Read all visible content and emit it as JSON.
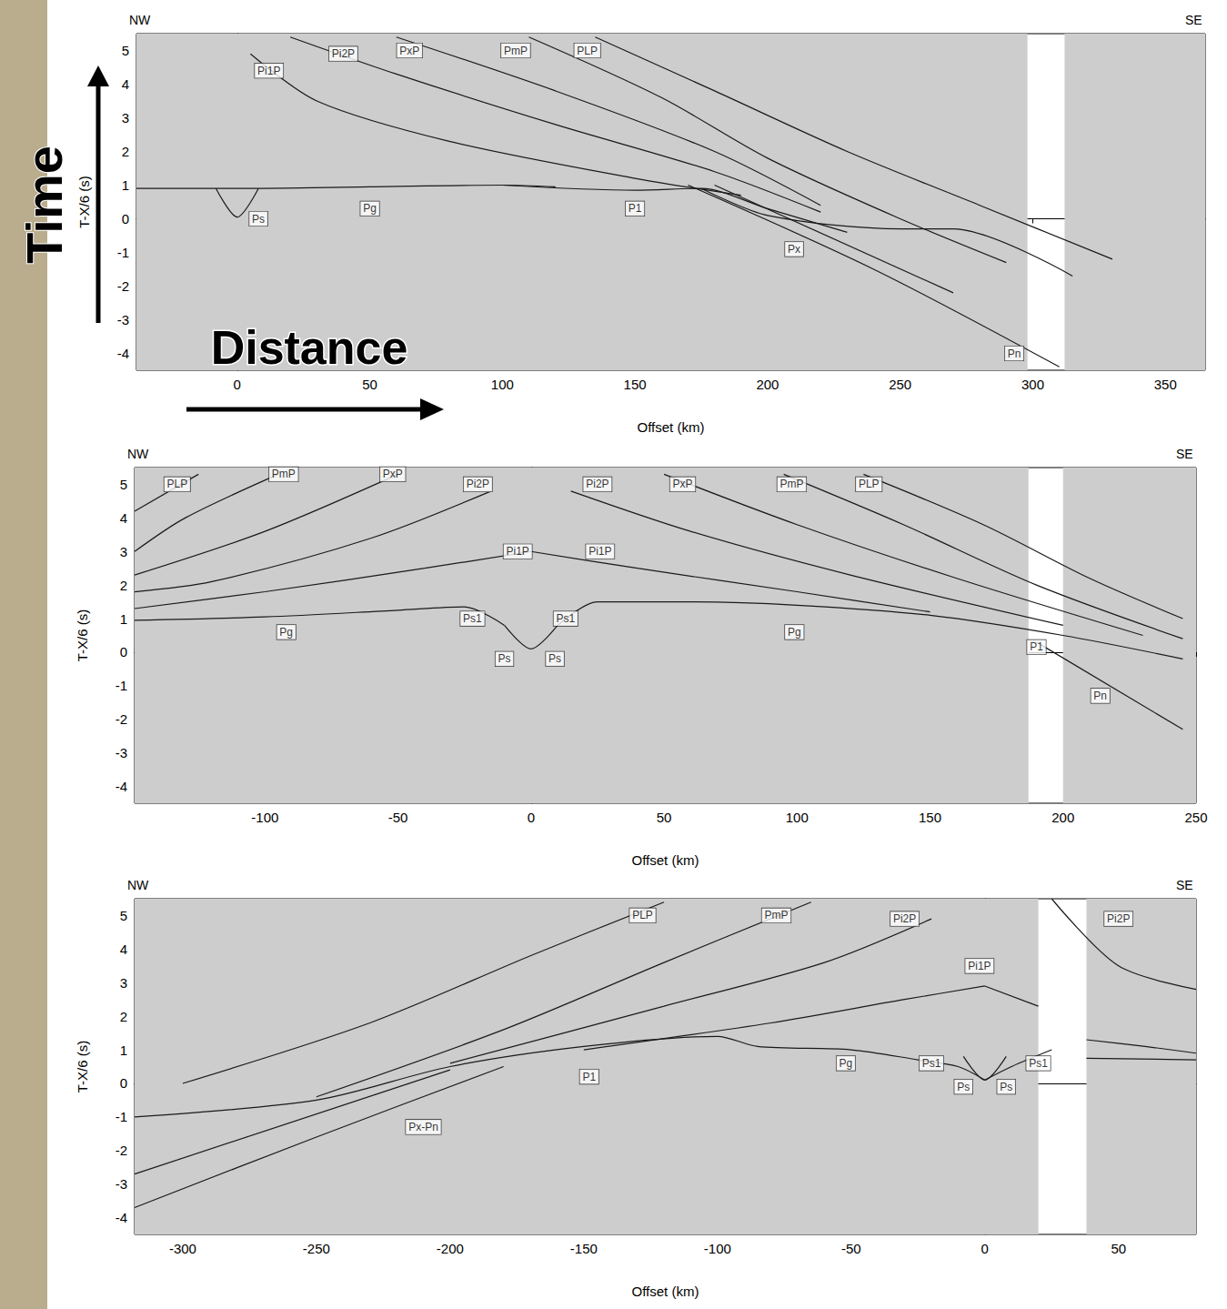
{
  "overlay": {
    "y_label": "Time",
    "x_label": "Distance"
  },
  "chart_data": [
    {
      "type": "line",
      "xlabel": "Offset (km)",
      "ylabel": "T-X/6 (s)",
      "color": "#1a1a1a",
      "corner_labels": {
        "left": "NW",
        "right": "SE"
      },
      "xlim": [
        -38,
        365
      ],
      "xticks": [
        0,
        50,
        100,
        150,
        200,
        250,
        300,
        350
      ],
      "ylim": [
        -4.5,
        5.5
      ],
      "yticks": [
        -4,
        -3,
        -2,
        -1,
        0,
        1,
        2,
        3,
        4,
        5
      ],
      "data_gaps": [
        [
          298,
          312
        ]
      ],
      "series": [
        {
          "x": [
            -8,
            0,
            8
          ],
          "values": [
            0.9,
            0.05,
            0.9
          ]
        },
        {
          "x": [
            -38,
            0,
            50,
            100,
            120
          ],
          "values": [
            0.9,
            0.9,
            0.95,
            1.0,
            0.95
          ]
        },
        {
          "x": [
            100,
            150,
            175,
            200,
            230
          ],
          "values": [
            1.0,
            0.85,
            0.9,
            0.3,
            -0.4
          ]
        },
        {
          "x": [
            175,
            200,
            250,
            270,
            315
          ],
          "values": [
            0.9,
            0.1,
            -0.3,
            -0.3,
            -1.7
          ]
        },
        {
          "x": [
            170,
            240,
            310
          ],
          "values": [
            1.0,
            -1.5,
            -4.4
          ]
        },
        {
          "x": [
            180,
            270
          ],
          "values": [
            1.0,
            -2.2
          ]
        },
        {
          "x": [
            5,
            30,
            80,
            150,
            190
          ],
          "values": [
            4.9,
            3.5,
            2.3,
            1.2,
            0.7
          ]
        },
        {
          "x": [
            20,
            60,
            120,
            180,
            220
          ],
          "values": [
            5.4,
            4.3,
            2.8,
            1.4,
            0.2
          ]
        },
        {
          "x": [
            60,
            120,
            180,
            220
          ],
          "values": [
            5.4,
            3.8,
            2.0,
            0.4
          ]
        },
        {
          "x": [
            110,
            160,
            200,
            250,
            290
          ],
          "values": [
            5.4,
            3.6,
            1.8,
            0.0,
            -1.3
          ]
        },
        {
          "x": [
            135,
            180,
            230,
            280,
            330
          ],
          "values": [
            5.4,
            3.8,
            2.0,
            0.4,
            -1.2
          ]
        }
      ],
      "labels": [
        {
          "text": "Pi1P",
          "x": 12,
          "y": 4.4
        },
        {
          "text": "Pi2P",
          "x": 40,
          "y": 4.9
        },
        {
          "text": "PxP",
          "x": 65,
          "y": 5.0
        },
        {
          "text": "PmP",
          "x": 105,
          "y": 5.0
        },
        {
          "text": "PLP",
          "x": 132,
          "y": 5.0
        },
        {
          "text": "Ps",
          "x": 8,
          "y": 0.0
        },
        {
          "text": "Pg",
          "x": 50,
          "y": 0.3
        },
        {
          "text": "P1",
          "x": 150,
          "y": 0.3
        },
        {
          "text": "Px",
          "x": 210,
          "y": -0.9
        },
        {
          "text": "Pn",
          "x": 293,
          "y": -4.0
        }
      ]
    },
    {
      "type": "line",
      "xlabel": "Offset (km)",
      "ylabel": "T-X/6 (s)",
      "color": "#1a1a1a",
      "corner_labels": {
        "left": "NW",
        "right": "SE"
      },
      "xlim": [
        -149,
        250
      ],
      "xticks": [
        -100,
        -50,
        0,
        50,
        100,
        150,
        200,
        250
      ],
      "ylim": [
        -4.5,
        5.5
      ],
      "yticks": [
        -4,
        -3,
        -2,
        -1,
        0,
        1,
        2,
        3,
        4,
        5
      ],
      "data_gaps": [
        [
          187,
          200
        ]
      ],
      "series": [
        {
          "x": [
            -10,
            0,
            10
          ],
          "values": [
            0.8,
            0.1,
            0.8
          ]
        },
        {
          "x": [
            -149,
            -100,
            -50,
            -25,
            -10
          ],
          "values": [
            0.95,
            1.05,
            1.25,
            1.35,
            0.8
          ]
        },
        {
          "x": [
            10,
            25,
            60,
            100,
            150,
            200,
            245
          ],
          "values": [
            0.8,
            1.5,
            1.5,
            1.4,
            1.1,
            0.5,
            -0.2
          ]
        },
        {
          "x": [
            190,
            245
          ],
          "values": [
            0.3,
            -2.3
          ]
        },
        {
          "x": [
            0,
            40,
            100,
            150
          ],
          "values": [
            3.0,
            2.5,
            1.8,
            1.2
          ]
        },
        {
          "x": [
            15,
            60,
            120,
            200
          ],
          "values": [
            4.8,
            3.6,
            2.3,
            0.8
          ]
        },
        {
          "x": [
            50,
            100,
            160,
            230
          ],
          "values": [
            5.3,
            3.8,
            2.2,
            0.5
          ]
        },
        {
          "x": [
            95,
            140,
            190,
            245
          ],
          "values": [
            5.3,
            3.8,
            2.0,
            0.4
          ]
        },
        {
          "x": [
            125,
            170,
            210,
            245
          ],
          "values": [
            5.3,
            3.8,
            2.2,
            1.0
          ]
        },
        {
          "x": [
            0,
            -40,
            -100,
            -149
          ],
          "values": [
            3.0,
            2.5,
            1.8,
            1.3
          ]
        },
        {
          "x": [
            -15,
            -60,
            -120,
            -149
          ],
          "values": [
            4.8,
            3.4,
            2.1,
            1.8
          ]
        },
        {
          "x": [
            -50,
            -100,
            -149
          ],
          "values": [
            5.3,
            3.6,
            2.3
          ]
        },
        {
          "x": [
            -95,
            -130,
            -149
          ],
          "values": [
            5.3,
            4.0,
            3.0
          ]
        },
        {
          "x": [
            -125,
            -149
          ],
          "values": [
            5.3,
            4.2
          ]
        }
      ],
      "labels": [
        {
          "text": "PLP",
          "x": -133,
          "y": 5.0
        },
        {
          "text": "PmP",
          "x": -93,
          "y": 5.3
        },
        {
          "text": "PxP",
          "x": -52,
          "y": 5.3
        },
        {
          "text": "Pi2P",
          "x": -20,
          "y": 5.0
        },
        {
          "text": "Pi1P",
          "x": -5,
          "y": 3.0
        },
        {
          "text": "Pi2P",
          "x": 25,
          "y": 5.0
        },
        {
          "text": "Pi1P",
          "x": 26,
          "y": 3.0
        },
        {
          "text": "PxP",
          "x": 57,
          "y": 5.0
        },
        {
          "text": "PmP",
          "x": 98,
          "y": 5.0
        },
        {
          "text": "PLP",
          "x": 127,
          "y": 5.0
        },
        {
          "text": "Ps1",
          "x": -22,
          "y": 1.0
        },
        {
          "text": "Ps",
          "x": -10,
          "y": -0.2
        },
        {
          "text": "Ps",
          "x": 9,
          "y": -0.2
        },
        {
          "text": "Ps1",
          "x": 13,
          "y": 1.0
        },
        {
          "text": "Pg",
          "x": -92,
          "y": 0.6
        },
        {
          "text": "Pg",
          "x": 99,
          "y": 0.6
        },
        {
          "text": "P1",
          "x": 190,
          "y": 0.15
        },
        {
          "text": "Pn",
          "x": 214,
          "y": -1.3
        }
      ]
    },
    {
      "type": "line",
      "xlabel": "Offset (km)",
      "ylabel": "T-X/6 (s)",
      "color": "#1a1a1a",
      "corner_labels": {
        "left": "NW",
        "right": "SE"
      },
      "xlim": [
        -318,
        79
      ],
      "xticks": [
        -300,
        -250,
        -200,
        -150,
        -100,
        -50,
        0,
        50
      ],
      "ylim": [
        -4.5,
        5.5
      ],
      "yticks": [
        -4,
        -3,
        -2,
        -1,
        0,
        1,
        2,
        3,
        4,
        5
      ],
      "data_gaps": [
        [
          20,
          38
        ]
      ],
      "series": [
        {
          "x": [
            -8,
            0,
            8
          ],
          "values": [
            0.8,
            0.1,
            0.8
          ]
        },
        {
          "x": [
            0,
            10,
            25
          ],
          "values": [
            0.1,
            0.5,
            1.0
          ]
        },
        {
          "x": [
            38,
            79
          ],
          "values": [
            0.75,
            0.7
          ]
        },
        {
          "x": [
            0,
            -10,
            -25,
            -50,
            -85,
            -100,
            -150,
            -200,
            -250,
            -318
          ],
          "values": [
            0.1,
            0.5,
            0.7,
            1.0,
            1.1,
            1.4,
            1.1,
            0.5,
            -0.5,
            -1.0
          ]
        },
        {
          "x": [
            -180,
            -250,
            -318
          ],
          "values": [
            0.5,
            -1.6,
            -3.7
          ]
        },
        {
          "x": [
            -200,
            -318
          ],
          "values": [
            0.4,
            -2.7
          ]
        },
        {
          "x": [
            0,
            -30,
            -80,
            -150
          ],
          "values": [
            2.9,
            2.5,
            1.8,
            1.0
          ]
        },
        {
          "x": [
            0,
            20
          ],
          "values": [
            2.9,
            2.3
          ]
        },
        {
          "x": [
            -20,
            -60,
            -120,
            -200
          ],
          "values": [
            4.9,
            3.6,
            2.3,
            0.6
          ]
        },
        {
          "x": [
            25,
            50,
            79
          ],
          "values": [
            5.5,
            3.5,
            2.8
          ]
        },
        {
          "x": [
            -65,
            -120,
            -180,
            -250
          ],
          "values": [
            5.4,
            3.6,
            1.6,
            -0.4
          ]
        },
        {
          "x": [
            -120,
            -170,
            -230,
            -300
          ],
          "values": [
            5.4,
            3.8,
            1.8,
            0.0
          ]
        },
        {
          "x": [
            38,
            60,
            79
          ],
          "values": [
            1.3,
            1.1,
            0.9
          ]
        }
      ],
      "labels": [
        {
          "text": "PLP",
          "x": -128,
          "y": 5.0
        },
        {
          "text": "PmP",
          "x": -78,
          "y": 5.0
        },
        {
          "text": "Pi2P",
          "x": -30,
          "y": 4.9
        },
        {
          "text": "Pi1P",
          "x": -2,
          "y": 3.5
        },
        {
          "text": "Pi2P",
          "x": 50,
          "y": 4.9
        },
        {
          "text": "Pg",
          "x": -52,
          "y": 0.6
        },
        {
          "text": "Ps1",
          "x": -20,
          "y": 0.6
        },
        {
          "text": "Ps",
          "x": -8,
          "y": -0.1
        },
        {
          "text": "Ps",
          "x": 8,
          "y": -0.1
        },
        {
          "text": "Ps1",
          "x": 20,
          "y": 0.6
        },
        {
          "text": "P1",
          "x": -148,
          "y": 0.2
        },
        {
          "text": "Px-Pn",
          "x": -210,
          "y": -1.3
        }
      ]
    }
  ]
}
